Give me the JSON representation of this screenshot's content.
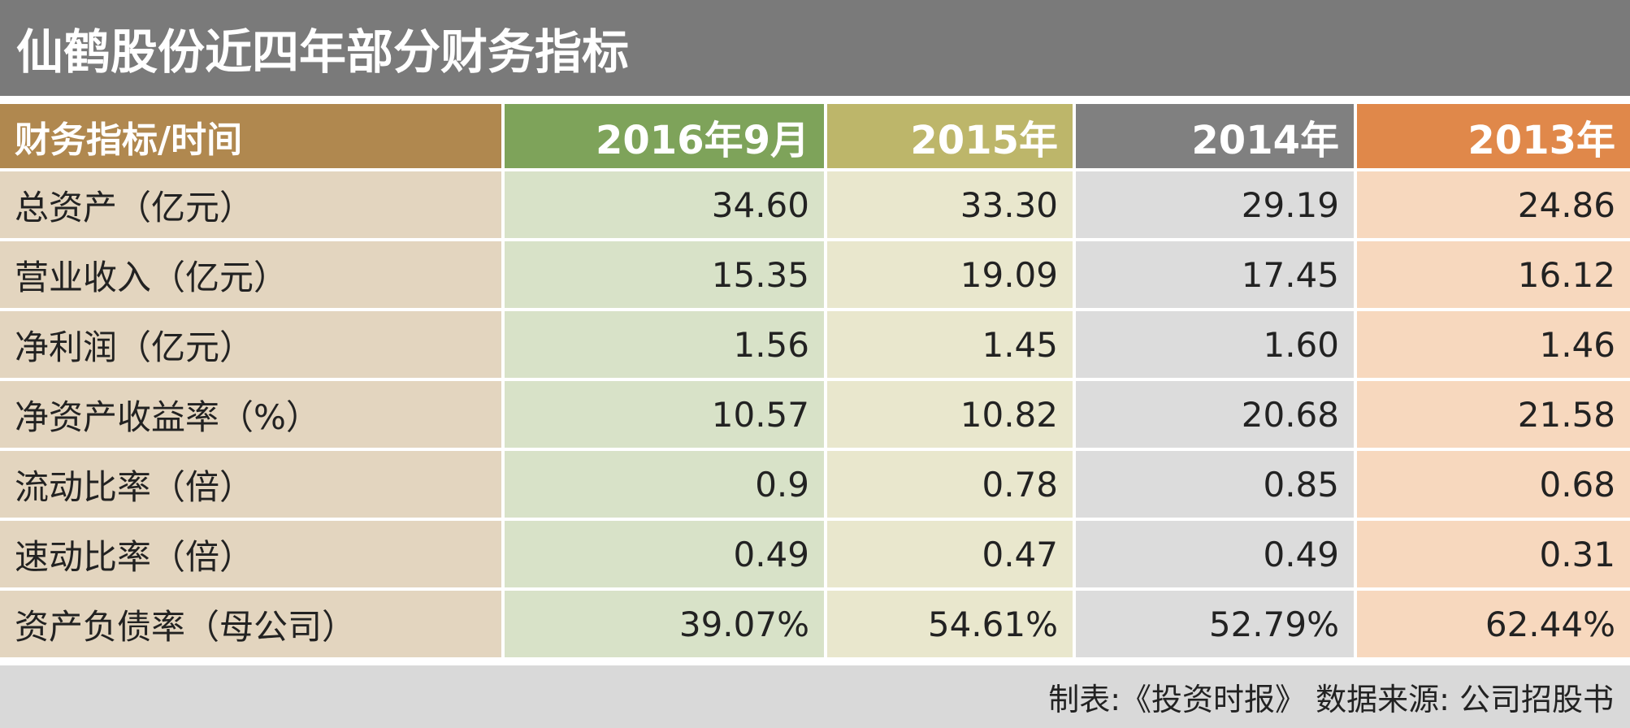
{
  "title": "仙鹤股份近四年部分财务指标",
  "table": {
    "header": [
      "财务指标/时间",
      "2016年9月",
      "2015年",
      "2014年",
      "2013年"
    ],
    "rows": [
      [
        "总资产（亿元）",
        "34.60",
        "33.30",
        "29.19",
        "24.86"
      ],
      [
        "营业收入（亿元）",
        "15.35",
        "19.09",
        "17.45",
        "16.12"
      ],
      [
        "净利润（亿元）",
        "1.56",
        "1.45",
        "1.60",
        "1.46"
      ],
      [
        "净资产收益率（%）",
        "10.57",
        "10.82",
        "20.68",
        "21.58"
      ],
      [
        "流动比率（倍）",
        "0.9",
        "0.78",
        "0.85",
        "0.68"
      ],
      [
        "速动比率（倍）",
        "0.49",
        "0.47",
        "0.49",
        "0.31"
      ],
      [
        "资产负债率（母公司）",
        "39.07%",
        "54.61%",
        "52.79%",
        "62.44%"
      ]
    ]
  },
  "footer": "制表:《投资时报》 数据来源: 公司招股书"
}
